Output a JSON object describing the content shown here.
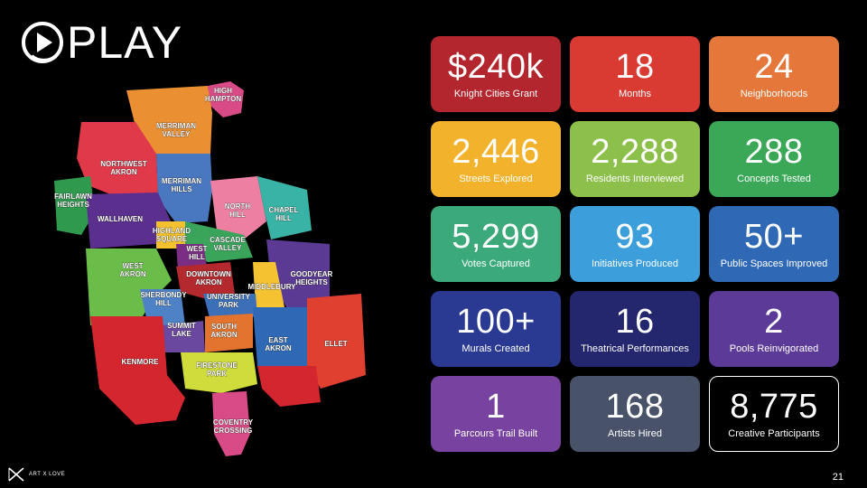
{
  "header": {
    "logo_text": "PLAY"
  },
  "map": {
    "neighborhoods": [
      {
        "label_lines": [
          "HIGH",
          "HAMPTON"
        ]
      },
      {
        "label_lines": [
          "MERRIMAN",
          "VALLEY"
        ]
      },
      {
        "label_lines": [
          "NORTHWEST",
          "AKRON"
        ]
      },
      {
        "label_lines": [
          "MERRIMAN",
          "HILLS"
        ]
      },
      {
        "label_lines": [
          "FAIRLAWN",
          "HEIGHTS"
        ]
      },
      {
        "label_lines": [
          "NORTH",
          "HILL"
        ]
      },
      {
        "label_lines": [
          "CHAPEL",
          "HILL"
        ]
      },
      {
        "label_lines": [
          "WALLHAVEN"
        ]
      },
      {
        "label_lines": [
          "HIGHLAND",
          "SQUARE"
        ]
      },
      {
        "label_lines": [
          "CASCADE",
          "VALLEY"
        ]
      },
      {
        "label_lines": [
          "WEST",
          "HILL"
        ]
      },
      {
        "label_lines": [
          "WEST",
          "AKRON"
        ]
      },
      {
        "label_lines": [
          "DOWNTOWN",
          "AKRON"
        ]
      },
      {
        "label_lines": [
          "GOODYEAR",
          "HEIGHTS"
        ]
      },
      {
        "label_lines": [
          "MIDDLEBURY"
        ]
      },
      {
        "label_lines": [
          "SHERBONDY",
          "HILL"
        ]
      },
      {
        "label_lines": [
          "UNIVERSITY",
          "PARK"
        ]
      },
      {
        "label_lines": [
          "SUMMIT",
          "LAKE"
        ]
      },
      {
        "label_lines": [
          "SOUTH",
          "AKRON"
        ]
      },
      {
        "label_lines": [
          "EAST",
          "AKRON"
        ]
      },
      {
        "label_lines": [
          "ELLET"
        ]
      },
      {
        "label_lines": [
          "KENMORE"
        ]
      },
      {
        "label_lines": [
          "FIRESTONE",
          "PARK"
        ]
      },
      {
        "label_lines": [
          "COVENTRY",
          "CROSSING"
        ]
      }
    ]
  },
  "stats": [
    {
      "value": "$240k",
      "label": "Knight Cities Grant",
      "color": "#b3262e"
    },
    {
      "value": "18",
      "label": "Months",
      "color": "#d93a31"
    },
    {
      "value": "24",
      "label": "Neighborhoods",
      "color": "#e5773a"
    },
    {
      "value": "2,446",
      "label": "Streets Explored",
      "color": "#f2b22b"
    },
    {
      "value": "2,288",
      "label": "Residents Interviewed",
      "color": "#8cc04b"
    },
    {
      "value": "288",
      "label": "Concepts Tested",
      "color": "#3aa857"
    },
    {
      "value": "5,299",
      "label": "Votes Captured",
      "color": "#3ba97a"
    },
    {
      "value": "93",
      "label": "Initiatives Produced",
      "color": "#3c9edb"
    },
    {
      "value": "50+",
      "label": "Public Spaces Improved",
      "color": "#2f69b5"
    },
    {
      "value": "100+",
      "label": "Murals Created",
      "color": "#2a3a93"
    },
    {
      "value": "16",
      "label": "Theatrical Performances",
      "color": "#24276e"
    },
    {
      "value": "2",
      "label": "Pools Reinvigorated",
      "color": "#5c3b98"
    },
    {
      "value": "1",
      "label": "Parcours Trail Built",
      "color": "#7843a0"
    },
    {
      "value": "168",
      "label": "Artists Hired",
      "color": "#485369"
    },
    {
      "value": "8,775",
      "label": "Creative Participants",
      "color": "#000000"
    }
  ],
  "footer": {
    "brand_text": "ART X LOVE",
    "page_number": "21"
  }
}
